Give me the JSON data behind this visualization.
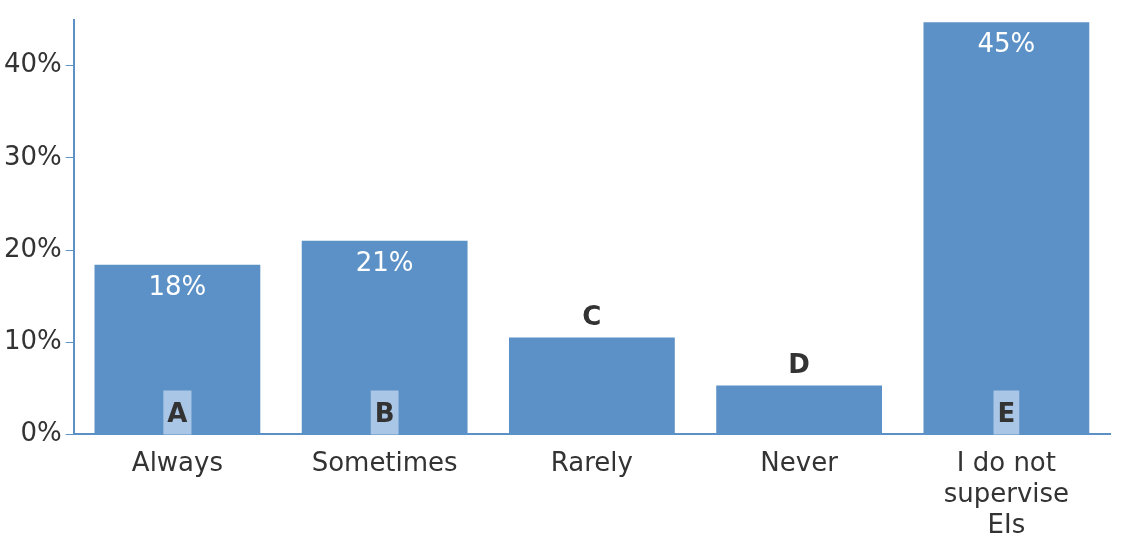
{
  "chart_data": {
    "type": "bar",
    "categories": [
      "Always",
      "Sometimes",
      "Rarely",
      "Never",
      "I do not supervise EIs"
    ],
    "values": [
      18.4,
      21,
      10.5,
      5.3,
      44.7
    ],
    "color": "#5b91c6",
    "value_labels": [
      "18%",
      "21%",
      null,
      null,
      "45%"
    ],
    "ylim": [
      0,
      45
    ],
    "yticks": [
      {
        "value": 0,
        "label": "0%"
      },
      {
        "value": 10,
        "label": "10%"
      },
      {
        "value": 20,
        "label": "20%"
      },
      {
        "value": 30,
        "label": "30%"
      },
      {
        "value": 40,
        "label": "40%"
      }
    ],
    "annotations": [
      {
        "text": "A",
        "x": "Always",
        "y": 0
      },
      {
        "text": "B",
        "x": "Sometimes",
        "y": 0
      },
      {
        "text": "C",
        "x": "Rarely",
        "y": 10.5
      },
      {
        "text": "D",
        "x": "Never",
        "y": 5.3
      },
      {
        "text": "E",
        "x": "I do not supervise EIs",
        "y": 0
      }
    ],
    "grid": false,
    "legend": false
  }
}
